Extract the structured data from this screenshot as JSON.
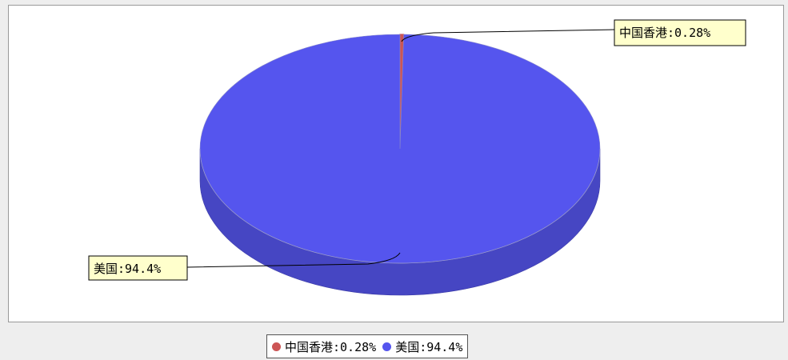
{
  "chart_data": {
    "type": "pie",
    "style": "3d",
    "slices": [
      {
        "name": "中国香港",
        "value": 0.28,
        "label": "中国香港:0.28%",
        "color": "#cc5555"
      },
      {
        "name": "美国",
        "value": 94.4,
        "label": "美国:94.4%",
        "color": "#5555ee"
      }
    ],
    "legend": {
      "placement": "bottom-center",
      "items": [
        "中国香港:0.28%",
        "美国:94.4%"
      ]
    }
  }
}
